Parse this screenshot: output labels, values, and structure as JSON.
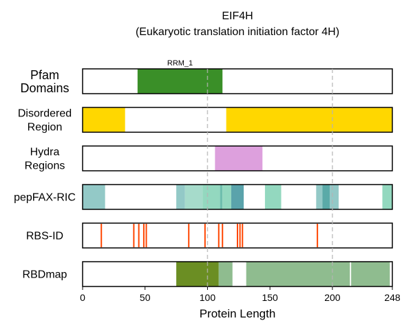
{
  "chart_data": {
    "type": "track",
    "title": "EIF4H",
    "subtitle": "(Eukaryotic translation initiation factor 4H)",
    "xlabel": "Protein Length",
    "xlim": [
      0,
      248
    ],
    "xticks": [
      0,
      50,
      100,
      150,
      200,
      248
    ],
    "gridlines": [
      100,
      200
    ],
    "tracks": [
      {
        "label_lines": [
          "Pfam",
          "Domains"
        ],
        "segments": [
          {
            "start": 44,
            "end": 112,
            "color": "#3a8f28",
            "label": "RRM_1"
          }
        ]
      },
      {
        "label_lines": [
          "Disordered",
          "Region"
        ],
        "segments": [
          {
            "start": 0,
            "end": 34,
            "color": "#ffd700"
          },
          {
            "start": 115,
            "end": 248,
            "color": "#ffd700"
          }
        ]
      },
      {
        "label_lines": [
          "Hydra",
          "Regions"
        ],
        "segments": [
          {
            "start": 106,
            "end": 144,
            "color": "#dda0dd"
          }
        ]
      },
      {
        "label_lines": [
          "pepFAX-RIC"
        ],
        "segments": [
          {
            "start": 0,
            "end": 18,
            "color": "#93c9c7"
          },
          {
            "start": 75,
            "end": 82,
            "color": "#93c9c7"
          },
          {
            "start": 82,
            "end": 96,
            "color": "#a6dbcb"
          },
          {
            "start": 96,
            "end": 110,
            "color": "#93d8bf"
          },
          {
            "start": 110,
            "end": 112,
            "color": "#6fbfae"
          },
          {
            "start": 112,
            "end": 119,
            "color": "#93d8bf"
          },
          {
            "start": 119,
            "end": 129,
            "color": "#5aa3ab"
          },
          {
            "start": 146,
            "end": 159,
            "color": "#93d8bf"
          },
          {
            "start": 187,
            "end": 192,
            "color": "#93c9c7"
          },
          {
            "start": 192,
            "end": 198,
            "color": "#5aaaa8"
          },
          {
            "start": 198,
            "end": 205,
            "color": "#93c9c7"
          },
          {
            "start": 240,
            "end": 248,
            "color": "#93d8bf"
          }
        ]
      },
      {
        "label_lines": [
          "RBS-ID"
        ],
        "ticks": [
          15,
          41,
          45,
          49,
          51,
          85,
          98,
          109,
          112,
          124,
          126,
          128,
          188
        ],
        "tick_color": "#ff4500"
      },
      {
        "label_lines": [
          "RBDmap"
        ],
        "segments": [
          {
            "start": 75,
            "end": 109,
            "color": "#6b8e23"
          },
          {
            "start": 109,
            "end": 120,
            "color": "#8fbc8f"
          },
          {
            "start": 131,
            "end": 214,
            "color": "#8fbc8f"
          },
          {
            "start": 215,
            "end": 246,
            "color": "#8fbc8f"
          }
        ]
      }
    ]
  }
}
